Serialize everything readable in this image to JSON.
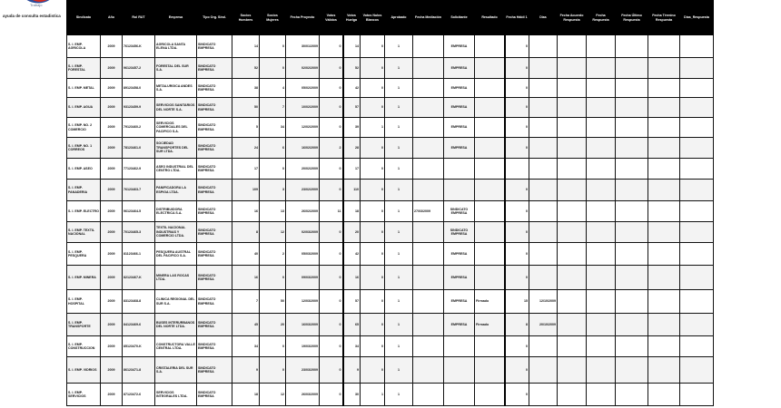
{
  "header": {
    "logo_text": "Trabajo",
    "subtitle": "ayuda de consulta estadistica"
  },
  "colors": {
    "header_bg": "#000000",
    "alt_row": "#f3f3f3",
    "logo_red": "#d52b1e",
    "logo_blue": "#2b4a9a"
  },
  "table": {
    "columns": [
      "Sindicato",
      "Año",
      "Rol RUT",
      "Empresa",
      "Tipo Org. Sind.",
      "Socios Hombres",
      "Socios Mujeres",
      "Fecha Proyecto",
      "Votos Válidos",
      "Votos Huelga",
      "Votos Nulos Blancos",
      "Aprobado",
      "Fecha Mediación",
      "Solicitante",
      "Resultado",
      "Fecha Hábil 1",
      "Días",
      "Fecha Acuerdo Respuesta",
      "Fecha Respuesta",
      "Fecha Último Respuesta",
      "Fecha Término Respuesta",
      "Días_Respuesta"
    ],
    "rows": [
      [
        "S. I. EMP. AGRICOLA",
        "2009",
        "76123456-K",
        "AGRICOLA SANTA ELENA LTDA.",
        "SINDICATO EMPRESA",
        "14",
        "0",
        "30/01/2009",
        "0",
        "14",
        "0",
        "1",
        "",
        "EMPRESA",
        "",
        "0",
        "",
        "",
        "",
        "",
        "",
        ""
      ],
      [
        "S. I. EMP. FORESTAL",
        "2009",
        "96123457-2",
        "FORESTAL DEL SUR S.A.",
        "SINDICATO EMPRESA",
        "52",
        "0",
        "02/02/2009",
        "0",
        "52",
        "0",
        "1",
        "",
        "EMPRESA",
        "",
        "0",
        "",
        "",
        "",
        "",
        "",
        ""
      ],
      [
        "S. I. EMP. METAL",
        "2009",
        "89123458-0",
        "METALURGICA ANDES S.A.",
        "SINDICATO EMPRESA",
        "38",
        "4",
        "05/02/2009",
        "0",
        "42",
        "0",
        "1",
        "",
        "EMPRESA",
        "",
        "0",
        "",
        "",
        "",
        "",
        "",
        ""
      ],
      [
        "S. I. EMP. AGUA",
        "2009",
        "93123459-9",
        "SERVICIOS SANITARIOS DEL NORTE S.A.",
        "SINDICATO EMPRESA",
        "50",
        "7",
        "10/02/2009",
        "0",
        "57",
        "0",
        "1",
        "",
        "EMPRESA",
        "",
        "0",
        "",
        "",
        "",
        "",
        "",
        ""
      ],
      [
        "S. I. EMP. NO. 2 COMERCIO",
        "2009",
        "79123460-2",
        "SERVICIOS COMERCIALES DEL PACIFICO S.A.",
        "SINDICATO EMPRESA",
        "5",
        "34",
        "12/02/2009",
        "0",
        "39",
        "1",
        "1",
        "",
        "EMPRESA",
        "",
        "0",
        "",
        "",
        "",
        "",
        "",
        ""
      ],
      [
        "S. I. EMP. NO. 1 CORREOS",
        "2009",
        "78123461-0",
        "SOCIEDAD TRANSPORTES DEL SUR LTDA.",
        "SINDICATO EMPRESA",
        "24",
        "6",
        "16/02/2009",
        "2",
        "28",
        "0",
        "1",
        "",
        "EMPRESA",
        "",
        "0",
        "",
        "",
        "",
        "",
        "",
        ""
      ],
      [
        "S. I. EMP. ASEO",
        "2009",
        "77123462-9",
        "ASEO INDUSTRIAL DEL CENTRO LTDA.",
        "SINDICATO EMPRESA",
        "17",
        "0",
        "20/02/2009",
        "0",
        "17",
        "0",
        "1",
        "",
        "",
        "",
        "",
        "",
        "",
        "",
        "",
        "",
        ""
      ],
      [
        "S. I. EMP. PANADERIA",
        "2009",
        "76123463-7",
        "PANIFICADORA LA ESPIGA LTDA.",
        "SINDICATO EMPRESA",
        "109",
        "3",
        "23/02/2009",
        "0",
        "110",
        "0",
        "1",
        "",
        "",
        "",
        "0",
        "",
        "",
        "",
        "",
        "",
        ""
      ],
      [
        "S. I. EMP. ELECTRO",
        "2009",
        "96123464-5",
        "DISTRIBUIDORA ELECTRICA S.A.",
        "SINDICATO EMPRESA",
        "16",
        "13",
        "26/02/2009",
        "11",
        "18",
        "0",
        "1",
        "27/03/2009",
        "SINDICATO EMPRESA",
        "",
        "0",
        "",
        "",
        "",
        "",
        "",
        ""
      ],
      [
        "S. I. EMP. TEXTIL NACIONAL",
        "2009",
        "70123465-3",
        "TEXTIL NACIONAL INDUSTRIAS Y COMERCIO LTDA.",
        "SINDICATO EMPRESA",
        "8",
        "12",
        "02/03/2009",
        "0",
        "20",
        "0",
        "1",
        "",
        "SINDICATO EMPRESA",
        "",
        "0",
        "",
        "",
        "",
        "",
        "",
        ""
      ],
      [
        "S. I. EMP. PESQUERA",
        "2009",
        "81123466-1",
        "PESQUERA AUSTRAL DEL PACIFICO S.A.",
        "SINDICATO EMPRESA",
        "40",
        "2",
        "05/03/2009",
        "0",
        "42",
        "0",
        "1",
        "",
        "EMPRESA",
        "",
        "0",
        "",
        "",
        "",
        "",
        "",
        ""
      ],
      [
        "S. I. EMP. MINERA",
        "2009",
        "82123467-K",
        "MINERA LAS ROCAS LTDA.",
        "SINDICATO EMPRESA",
        "16",
        "0",
        "09/03/2009",
        "0",
        "16",
        "0",
        "1",
        "",
        "EMPRESA",
        "",
        "0",
        "",
        "",
        "",
        "",
        "",
        ""
      ],
      [
        "S. I. EMP. HOSPITAL",
        "2009",
        "83123468-8",
        "CLINICA REGIONAL DEL SUR S.A.",
        "SINDICATO EMPRESA",
        "7",
        "50",
        "12/03/2009",
        "0",
        "57",
        "0",
        "1",
        "",
        "EMPRESA",
        "Firmado",
        "15",
        "12/10/2009",
        "",
        "",
        "",
        "",
        ""
      ],
      [
        "S. I. EMP. TRANSPORTE",
        "2009",
        "84123469-6",
        "BUSES INTERURBANOS DEL NORTE LTDA.",
        "SINDICATO EMPRESA",
        "45",
        "20",
        "16/03/2009",
        "0",
        "65",
        "0",
        "1",
        "",
        "EMPRESA",
        "Firmado",
        "8",
        "20/10/2009",
        "",
        "",
        "",
        "",
        ""
      ],
      [
        "S. I. EMP. CONSTRUCCION",
        "2009",
        "85123470-K",
        "CONSTRUCTORA VALLE CENTRAL LTDA.",
        "SINDICATO EMPRESA",
        "34",
        "0",
        "19/03/2009",
        "0",
        "34",
        "0",
        "1",
        "",
        "",
        "",
        "0",
        "",
        "",
        "",
        "",
        "",
        ""
      ],
      [
        "S. I. EMP. VIDRIOS",
        "2009",
        "86123471-8",
        "CRISTALERIA DEL SUR S.A.",
        "SINDICATO EMPRESA",
        "9",
        "0",
        "23/03/2009",
        "0",
        "9",
        "0",
        "1",
        "",
        "",
        "",
        "0",
        "",
        "",
        "",
        "",
        "",
        ""
      ],
      [
        "S. I. EMP. SERVICIOS",
        "2009",
        "87123472-6",
        "SERVICIOS INTEGRALES LTDA.",
        "SINDICATO EMPRESA",
        "18",
        "12",
        "26/03/2009",
        "0",
        "30",
        "1",
        "1",
        "",
        "",
        "",
        "0",
        "",
        "",
        "",
        "",
        "",
        ""
      ]
    ]
  }
}
